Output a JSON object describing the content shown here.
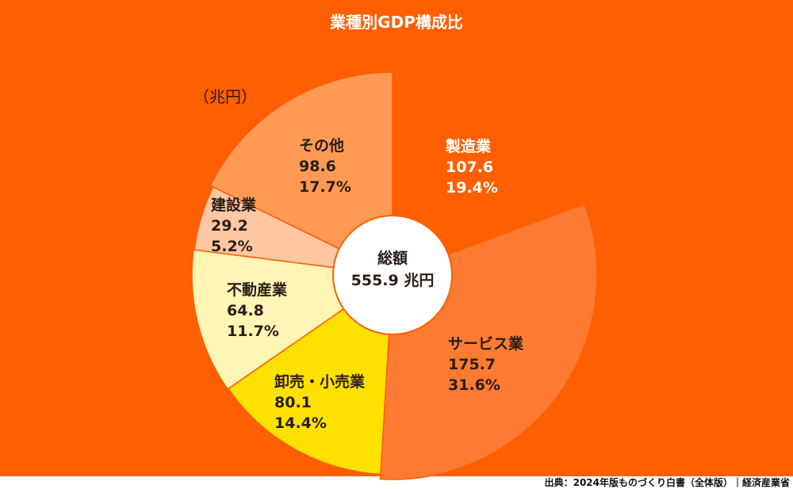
{
  "chart_data": {
    "type": "pie",
    "title": "業種別GDP構成比",
    "unit_label": "（兆円）",
    "center_label": "総額",
    "center_value": "555.9 兆円",
    "total": 555.9,
    "categories": [
      "製造業",
      "サービス業",
      "卸売・小売業",
      "不動産業",
      "建設業",
      "その他"
    ],
    "values": [
      107.6,
      175.7,
      80.1,
      64.8,
      29.2,
      98.6
    ],
    "percentages": [
      19.4,
      31.6,
      14.4,
      11.7,
      5.2,
      17.7
    ],
    "colors": [
      "#FF5F00",
      "#FF7A33",
      "#FFE100",
      "#FFF5B4",
      "#FFC7A2",
      "#FF9A55"
    ],
    "source": "出典：2024年版ものづくり白書（全体版）｜経済産業省"
  },
  "labels": [
    {
      "name": "製造業",
      "value": "107.6",
      "pct": "19.4%"
    },
    {
      "name": "サービス業",
      "value": "175.7",
      "pct": "31.6%"
    },
    {
      "name": "卸売・小売業",
      "value": "80.1",
      "pct": "14.4%"
    },
    {
      "name": "不動産業",
      "value": "64.8",
      "pct": "11.7%"
    },
    {
      "name": "建設業",
      "value": "29.2",
      "pct": "5.2%"
    },
    {
      "name": "その他",
      "value": "98.6",
      "pct": "17.7%"
    }
  ]
}
